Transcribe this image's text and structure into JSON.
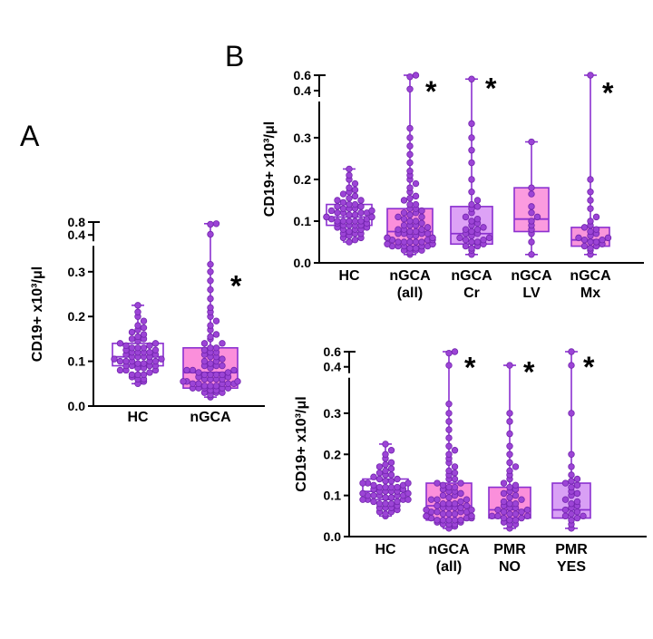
{
  "panel_labels": {
    "a": "A",
    "b": "B"
  },
  "colors": {
    "dot_fill": "#9C44D6",
    "dot_stroke": "#7326AE",
    "line": "#8B30D0",
    "axis": "#000000",
    "asterisk": "#000000",
    "box_white": "#FFFFFF",
    "box_pink": "#FB8FDB",
    "box_lavender": "#DDA2F6"
  },
  "chart_data": [
    {
      "id": "chartA",
      "type": "box-scatter",
      "ylabel": "CD19+ x10³/μl",
      "ylim": [
        0,
        0.8
      ],
      "yticks": [
        {
          "v": 0.0,
          "label": "0.0"
        },
        {
          "v": 0.1,
          "label": "0.1"
        },
        {
          "v": 0.2,
          "label": "0.2"
        },
        {
          "v": 0.3,
          "label": "0.3"
        },
        {
          "v": 0.4,
          "label": "0.4"
        },
        {
          "v": 0.8,
          "label": "0.8"
        }
      ],
      "y_scale_knots": [
        [
          0,
          0
        ],
        [
          0.3,
          0.73
        ],
        [
          0.4,
          0.93
        ],
        [
          0.8,
          1.0
        ]
      ],
      "groups": [
        {
          "label_lines": [
            "HC"
          ],
          "fill": "#FFFFFF",
          "box": {
            "whisker_low": 0.05,
            "q1": 0.09,
            "median": 0.11,
            "q3": 0.14,
            "whisker_high": 0.225
          },
          "asterisk_value": null,
          "values": [
            0.05,
            0.055,
            0.06,
            0.06,
            0.065,
            0.07,
            0.07,
            0.07,
            0.075,
            0.08,
            0.08,
            0.08,
            0.085,
            0.085,
            0.09,
            0.09,
            0.09,
            0.09,
            0.095,
            0.095,
            0.1,
            0.1,
            0.1,
            0.1,
            0.1,
            0.105,
            0.105,
            0.11,
            0.11,
            0.11,
            0.11,
            0.115,
            0.115,
            0.12,
            0.12,
            0.12,
            0.12,
            0.125,
            0.125,
            0.13,
            0.13,
            0.13,
            0.135,
            0.135,
            0.14,
            0.14,
            0.145,
            0.15,
            0.15,
            0.155,
            0.16,
            0.165,
            0.17,
            0.175,
            0.18,
            0.19,
            0.2,
            0.21,
            0.225
          ]
        },
        {
          "label_lines": [
            "nGCA"
          ],
          "fill": "#FB8FDB",
          "box": {
            "whisker_low": 0.02,
            "q1": 0.04,
            "median": 0.075,
            "q3": 0.13,
            "whisker_high": 0.75
          },
          "asterisk_value": 0.28,
          "values": [
            0.02,
            0.025,
            0.03,
            0.03,
            0.03,
            0.035,
            0.035,
            0.04,
            0.04,
            0.04,
            0.04,
            0.04,
            0.045,
            0.045,
            0.045,
            0.05,
            0.05,
            0.05,
            0.05,
            0.05,
            0.055,
            0.055,
            0.055,
            0.06,
            0.06,
            0.06,
            0.06,
            0.065,
            0.065,
            0.07,
            0.07,
            0.07,
            0.07,
            0.075,
            0.075,
            0.08,
            0.08,
            0.08,
            0.085,
            0.09,
            0.09,
            0.09,
            0.095,
            0.1,
            0.1,
            0.105,
            0.11,
            0.11,
            0.115,
            0.12,
            0.12,
            0.125,
            0.13,
            0.13,
            0.14,
            0.14,
            0.15,
            0.155,
            0.16,
            0.17,
            0.18,
            0.19,
            0.2,
            0.21,
            0.22,
            0.24,
            0.26,
            0.28,
            0.3,
            0.32,
            0.42,
            0.73,
            0.75
          ]
        }
      ]
    },
    {
      "id": "chartB1",
      "type": "box-scatter",
      "ylabel": "CD19+ x10³/μl",
      "ylim": [
        0,
        0.6
      ],
      "yticks": [
        {
          "v": 0.0,
          "label": "0.0"
        },
        {
          "v": 0.1,
          "label": "0.1"
        },
        {
          "v": 0.2,
          "label": "0.2"
        },
        {
          "v": 0.3,
          "label": "0.3"
        },
        {
          "v": 0.4,
          "label": "0.4"
        },
        {
          "v": 0.6,
          "label": "0.6"
        }
      ],
      "y_scale_knots": [
        [
          0,
          0
        ],
        [
          0.3,
          0.667
        ],
        [
          0.4,
          0.918
        ],
        [
          0.6,
          1.0
        ]
      ],
      "groups": [
        {
          "label_lines": [
            "HC"
          ],
          "fill": "#FFFFFF",
          "box": {
            "whisker_low": 0.05,
            "q1": 0.09,
            "median": 0.11,
            "q3": 0.14,
            "whisker_high": 0.225
          },
          "asterisk_value": null,
          "values": [
            0.05,
            0.055,
            0.06,
            0.06,
            0.065,
            0.07,
            0.07,
            0.07,
            0.075,
            0.08,
            0.08,
            0.08,
            0.085,
            0.085,
            0.09,
            0.09,
            0.09,
            0.09,
            0.095,
            0.095,
            0.1,
            0.1,
            0.1,
            0.1,
            0.1,
            0.105,
            0.105,
            0.11,
            0.11,
            0.11,
            0.11,
            0.115,
            0.115,
            0.12,
            0.12,
            0.12,
            0.12,
            0.125,
            0.125,
            0.13,
            0.13,
            0.13,
            0.135,
            0.135,
            0.14,
            0.14,
            0.145,
            0.15,
            0.15,
            0.155,
            0.16,
            0.165,
            0.17,
            0.175,
            0.18,
            0.19,
            0.2,
            0.21,
            0.225
          ]
        },
        {
          "label_lines": [
            "nGCA",
            "(all)"
          ],
          "fill": "#FB8FDB",
          "box": {
            "whisker_low": 0.02,
            "q1": 0.04,
            "median": 0.075,
            "q3": 0.13,
            "whisker_high": 0.6
          },
          "asterisk_value": 0.46,
          "values": [
            0.02,
            0.025,
            0.03,
            0.03,
            0.03,
            0.035,
            0.035,
            0.04,
            0.04,
            0.04,
            0.04,
            0.04,
            0.045,
            0.045,
            0.045,
            0.05,
            0.05,
            0.05,
            0.05,
            0.05,
            0.055,
            0.055,
            0.055,
            0.06,
            0.06,
            0.06,
            0.06,
            0.065,
            0.065,
            0.07,
            0.07,
            0.07,
            0.07,
            0.075,
            0.075,
            0.08,
            0.08,
            0.08,
            0.085,
            0.09,
            0.09,
            0.09,
            0.095,
            0.1,
            0.1,
            0.105,
            0.11,
            0.11,
            0.115,
            0.12,
            0.12,
            0.125,
            0.13,
            0.13,
            0.14,
            0.14,
            0.15,
            0.155,
            0.16,
            0.17,
            0.18,
            0.19,
            0.2,
            0.21,
            0.22,
            0.24,
            0.26,
            0.28,
            0.3,
            0.32,
            0.42,
            0.58,
            0.6
          ]
        },
        {
          "label_lines": [
            "nGCA",
            "Cr"
          ],
          "fill": "#DDA2F6",
          "box": {
            "whisker_low": 0.02,
            "q1": 0.045,
            "median": 0.07,
            "q3": 0.135,
            "whisker_high": 0.55
          },
          "asterisk_value": 0.5,
          "values": [
            0.02,
            0.03,
            0.035,
            0.04,
            0.04,
            0.045,
            0.05,
            0.05,
            0.055,
            0.055,
            0.06,
            0.06,
            0.065,
            0.07,
            0.07,
            0.075,
            0.08,
            0.08,
            0.085,
            0.09,
            0.095,
            0.1,
            0.105,
            0.11,
            0.12,
            0.13,
            0.135,
            0.14,
            0.15,
            0.17,
            0.2,
            0.24,
            0.27,
            0.3,
            0.33,
            0.55
          ]
        },
        {
          "label_lines": [
            "nGCA",
            "LV"
          ],
          "fill": "#FB9BDF",
          "box": {
            "whisker_low": 0.02,
            "q1": 0.075,
            "median": 0.105,
            "q3": 0.18,
            "whisker_high": 0.29
          },
          "asterisk_value": null,
          "values": [
            0.02,
            0.05,
            0.07,
            0.08,
            0.09,
            0.1,
            0.11,
            0.12,
            0.135,
            0.165,
            0.18,
            0.29
          ]
        },
        {
          "label_lines": [
            "nGCA",
            "Mx"
          ],
          "fill": "#F895DB",
          "box": {
            "whisker_low": 0.02,
            "q1": 0.04,
            "median": 0.055,
            "q3": 0.085,
            "whisker_high": 0.6
          },
          "asterisk_value": 0.44,
          "values": [
            0.02,
            0.03,
            0.035,
            0.04,
            0.04,
            0.045,
            0.05,
            0.05,
            0.055,
            0.055,
            0.06,
            0.06,
            0.065,
            0.07,
            0.075,
            0.08,
            0.085,
            0.09,
            0.1,
            0.11,
            0.13,
            0.15,
            0.17,
            0.2,
            0.6
          ]
        }
      ]
    },
    {
      "id": "chartB2",
      "type": "box-scatter",
      "ylabel": "CD19+ x10³/μl",
      "ylim": [
        0,
        0.6
      ],
      "yticks": [
        {
          "v": 0.0,
          "label": "0.0"
        },
        {
          "v": 0.1,
          "label": "0.1"
        },
        {
          "v": 0.2,
          "label": "0.2"
        },
        {
          "v": 0.3,
          "label": "0.3"
        },
        {
          "v": 0.4,
          "label": "0.4"
        },
        {
          "v": 0.6,
          "label": "0.6"
        }
      ],
      "y_scale_knots": [
        [
          0,
          0
        ],
        [
          0.3,
          0.667
        ],
        [
          0.4,
          0.918
        ],
        [
          0.6,
          1.0
        ]
      ],
      "groups": [
        {
          "label_lines": [
            "HC"
          ],
          "fill": "#FFFFFF",
          "box": {
            "whisker_low": 0.05,
            "q1": 0.09,
            "median": 0.11,
            "q3": 0.14,
            "whisker_high": 0.225
          },
          "asterisk_value": null,
          "values": [
            0.05,
            0.055,
            0.06,
            0.06,
            0.065,
            0.07,
            0.07,
            0.07,
            0.075,
            0.08,
            0.08,
            0.08,
            0.085,
            0.085,
            0.09,
            0.09,
            0.09,
            0.09,
            0.095,
            0.095,
            0.1,
            0.1,
            0.1,
            0.1,
            0.1,
            0.105,
            0.105,
            0.11,
            0.11,
            0.11,
            0.11,
            0.115,
            0.115,
            0.12,
            0.12,
            0.12,
            0.12,
            0.125,
            0.125,
            0.13,
            0.13,
            0.13,
            0.135,
            0.135,
            0.14,
            0.14,
            0.145,
            0.15,
            0.15,
            0.155,
            0.16,
            0.165,
            0.17,
            0.175,
            0.18,
            0.19,
            0.2,
            0.21,
            0.225
          ]
        },
        {
          "label_lines": [
            "nGCA",
            "(all)"
          ],
          "fill": "#FB8FDB",
          "box": {
            "whisker_low": 0.02,
            "q1": 0.04,
            "median": 0.075,
            "q3": 0.13,
            "whisker_high": 0.6
          },
          "asterisk_value": 0.46,
          "values": [
            0.02,
            0.025,
            0.03,
            0.03,
            0.03,
            0.035,
            0.035,
            0.04,
            0.04,
            0.04,
            0.04,
            0.04,
            0.045,
            0.045,
            0.045,
            0.05,
            0.05,
            0.05,
            0.05,
            0.05,
            0.055,
            0.055,
            0.055,
            0.06,
            0.06,
            0.06,
            0.06,
            0.065,
            0.065,
            0.07,
            0.07,
            0.07,
            0.07,
            0.075,
            0.075,
            0.08,
            0.08,
            0.08,
            0.085,
            0.09,
            0.09,
            0.09,
            0.095,
            0.1,
            0.1,
            0.105,
            0.11,
            0.11,
            0.115,
            0.12,
            0.12,
            0.125,
            0.13,
            0.13,
            0.14,
            0.14,
            0.15,
            0.155,
            0.16,
            0.17,
            0.18,
            0.19,
            0.2,
            0.21,
            0.22,
            0.24,
            0.26,
            0.28,
            0.3,
            0.32,
            0.42,
            0.58,
            0.6
          ]
        },
        {
          "label_lines": [
            "PMR",
            "NO"
          ],
          "fill": "#FB8FDB",
          "box": {
            "whisker_low": 0.02,
            "q1": 0.045,
            "median": 0.065,
            "q3": 0.12,
            "whisker_high": 0.42
          },
          "asterisk_value": 0.4,
          "values": [
            0.02,
            0.03,
            0.03,
            0.035,
            0.04,
            0.04,
            0.045,
            0.045,
            0.05,
            0.05,
            0.05,
            0.055,
            0.055,
            0.06,
            0.06,
            0.065,
            0.065,
            0.07,
            0.07,
            0.075,
            0.08,
            0.08,
            0.085,
            0.09,
            0.095,
            0.1,
            0.105,
            0.11,
            0.115,
            0.12,
            0.125,
            0.13,
            0.14,
            0.15,
            0.16,
            0.17,
            0.18,
            0.2,
            0.22,
            0.25,
            0.28,
            0.3,
            0.42
          ]
        },
        {
          "label_lines": [
            "PMR",
            "YES"
          ],
          "fill": "#D9A0F5",
          "box": {
            "whisker_low": 0.02,
            "q1": 0.045,
            "median": 0.065,
            "q3": 0.13,
            "whisker_high": 0.6
          },
          "asterisk_value": 0.47,
          "values": [
            0.02,
            0.03,
            0.04,
            0.045,
            0.05,
            0.05,
            0.055,
            0.06,
            0.065,
            0.07,
            0.075,
            0.08,
            0.085,
            0.09,
            0.1,
            0.105,
            0.11,
            0.12,
            0.125,
            0.13,
            0.135,
            0.14,
            0.15,
            0.17,
            0.2,
            0.3,
            0.42,
            0.6
          ]
        }
      ]
    }
  ]
}
